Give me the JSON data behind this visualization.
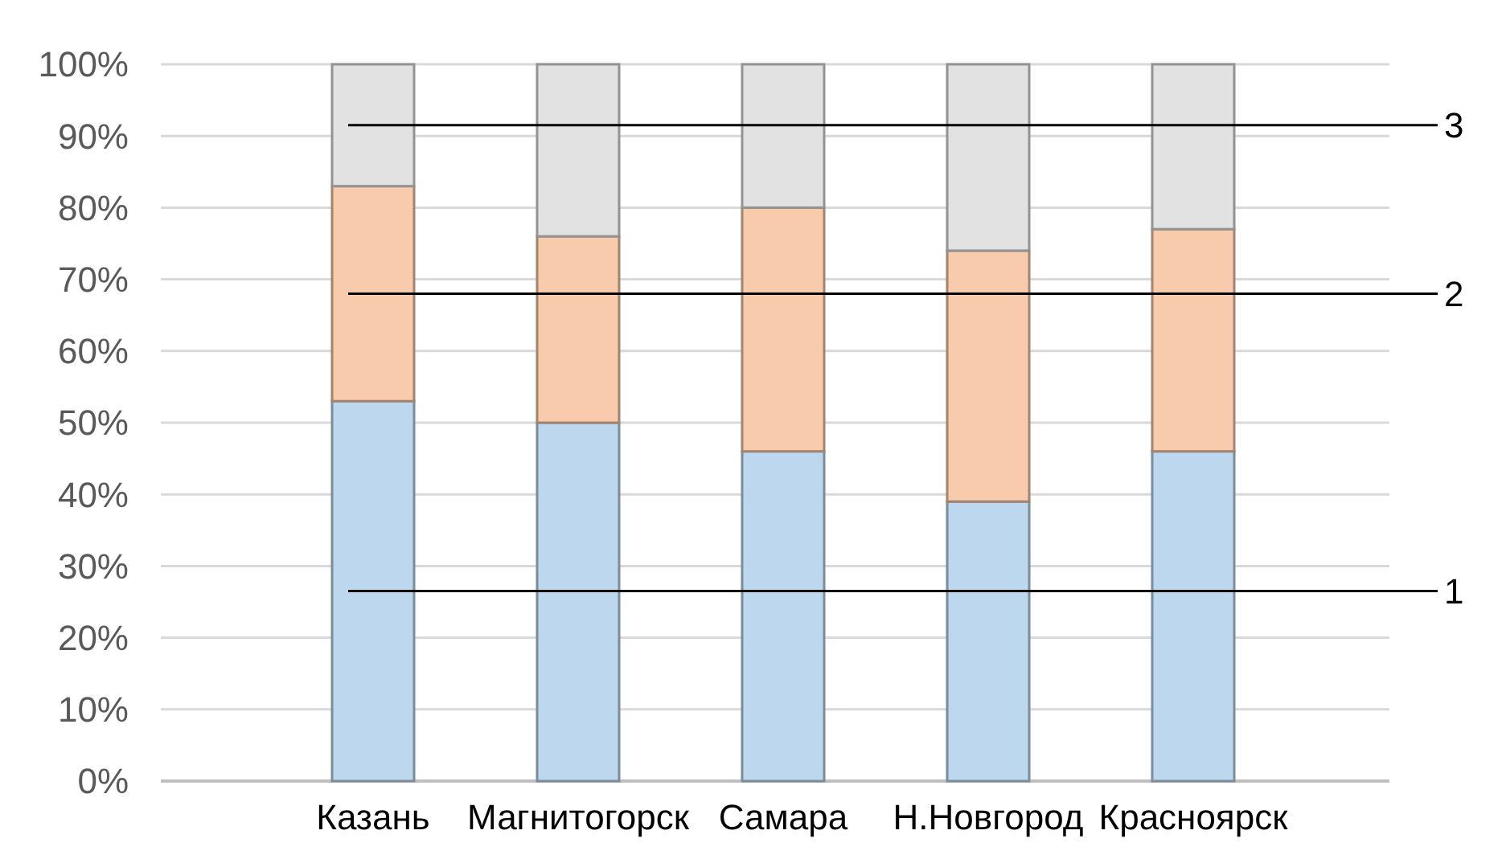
{
  "chart_data": {
    "type": "bar",
    "stacked": true,
    "categories": [
      "Казань",
      "Магнитогорск",
      "Самара",
      "Н.Новгород",
      "Красноярск"
    ],
    "series": [
      {
        "name": "1",
        "color": "#bdd7ee",
        "values": [
          53,
          50,
          46,
          39,
          46
        ]
      },
      {
        "name": "2",
        "color": "#f8cbad",
        "values": [
          30,
          26,
          34,
          35,
          31
        ]
      },
      {
        "name": "3",
        "color": "#e2e2e2",
        "values": [
          17,
          24,
          20,
          26,
          23
        ]
      }
    ],
    "ylim": [
      0,
      100
    ],
    "yticks": [
      {
        "value": 0,
        "label": "0%"
      },
      {
        "value": 10,
        "label": "10%"
      },
      {
        "value": 20,
        "label": "20%"
      },
      {
        "value": 30,
        "label": "30%"
      },
      {
        "value": 40,
        "label": "40%"
      },
      {
        "value": 50,
        "label": "50%"
      },
      {
        "value": 60,
        "label": "60%"
      },
      {
        "value": 70,
        "label": "70%"
      },
      {
        "value": 80,
        "label": "80%"
      },
      {
        "value": 90,
        "label": "90%"
      },
      {
        "value": 100,
        "label": "100%"
      }
    ],
    "grid": "y",
    "legend": "right"
  }
}
